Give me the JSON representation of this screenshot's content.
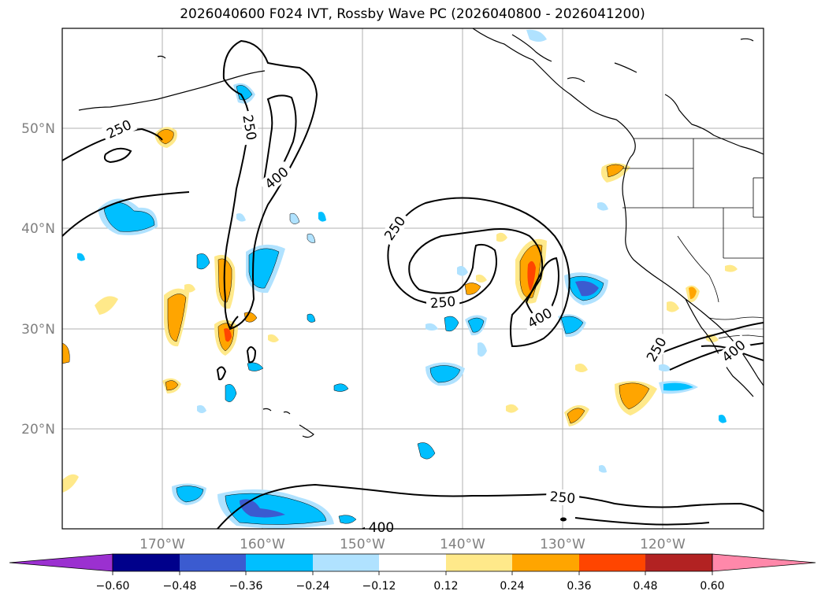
{
  "title": "2026040600 F024 IVT, Rossby Wave PC (2026040800 - 2026041200)",
  "lat_labels": [
    "50°N",
    "40°N",
    "30°N",
    "20°N"
  ],
  "lon_labels": [
    "170°W",
    "160°W",
    "150°W",
    "140°W",
    "130°W",
    "120°W"
  ],
  "contour_labels": [
    "250",
    "250",
    "400",
    "250",
    "250",
    "400",
    "250",
    "400",
    "250",
    "400"
  ],
  "colorbar": {
    "ticks": [
      "−0.60",
      "−0.48",
      "−0.36",
      "−0.24",
      "−0.12",
      "0.12",
      "0.24",
      "0.36",
      "0.48",
      "0.60"
    ],
    "colors": [
      "#9b30d0",
      "#00008b",
      "#3b5bd0",
      "#00bfff",
      "#b0e2ff",
      "#ffffff",
      "#ffe98a",
      "#ffa500",
      "#ff4500",
      "#b22222",
      "#ff88aa",
      "#ff88aa"
    ]
  }
}
